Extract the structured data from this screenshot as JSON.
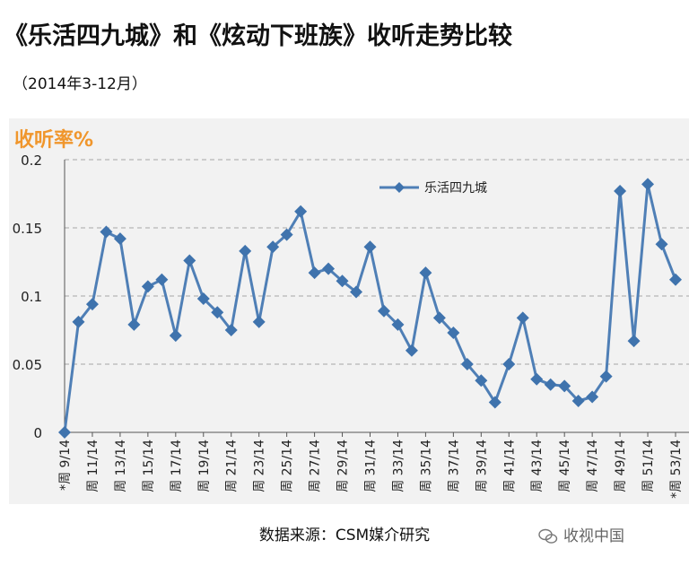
{
  "header": {
    "title": "《乐活四九城》和《炫动下班族》收听走势比较",
    "subtitle": "（2014年3-12月）"
  },
  "footer": {
    "source": "数据来源：CSM媒介研究",
    "watermark": "收视中国",
    "watermark_icon": "wechat-icon"
  },
  "colors": {
    "line": "#4f7fb6",
    "marker": "#3f73ad",
    "panel_bg": "#f2f2f2",
    "ylabel": "#f0962c",
    "grid": "#a6a6a6"
  },
  "chart_data": {
    "type": "line",
    "title": "",
    "xlabel": "",
    "ylabel": "收听率%",
    "ylim": [
      0,
      0.2
    ],
    "yticks": [
      "0",
      "0.05",
      "0.1",
      "0.15",
      "0.2"
    ],
    "grid": true,
    "legend_position": "top-right",
    "x_tick_labels": [
      "*周 9/14",
      "周 11/14",
      "周 13/14",
      "周 15/14",
      "周 17/14",
      "周 19/14",
      "周 21/14",
      "周 23/14",
      "周 25/14",
      "周 27/14",
      "周 29/14",
      "周 31/14",
      "周 33/14",
      "周 35/14",
      "周 37/14",
      "周 39/14",
      "周 41/14",
      "周 43/14",
      "周 45/14",
      "周 47/14",
      "周 49/14",
      "周 51/14",
      "*周 53/14"
    ],
    "series": [
      {
        "name": "乐活四九城",
        "values": [
          0,
          0.081,
          0.094,
          0.147,
          0.142,
          0.079,
          0.107,
          0.112,
          0.071,
          0.126,
          0.098,
          0.088,
          0.075,
          0.133,
          0.081,
          0.136,
          0.145,
          0.162,
          0.117,
          0.12,
          0.111,
          0.103,
          0.136,
          0.089,
          0.079,
          0.06,
          0.117,
          0.084,
          0.073,
          0.05,
          0.038,
          0.022,
          0.05,
          0.084,
          0.039,
          0.035,
          0.034,
          0.023,
          0.026,
          0.041,
          0.177,
          0.067,
          0.182,
          0.138,
          0.112
        ]
      }
    ]
  }
}
